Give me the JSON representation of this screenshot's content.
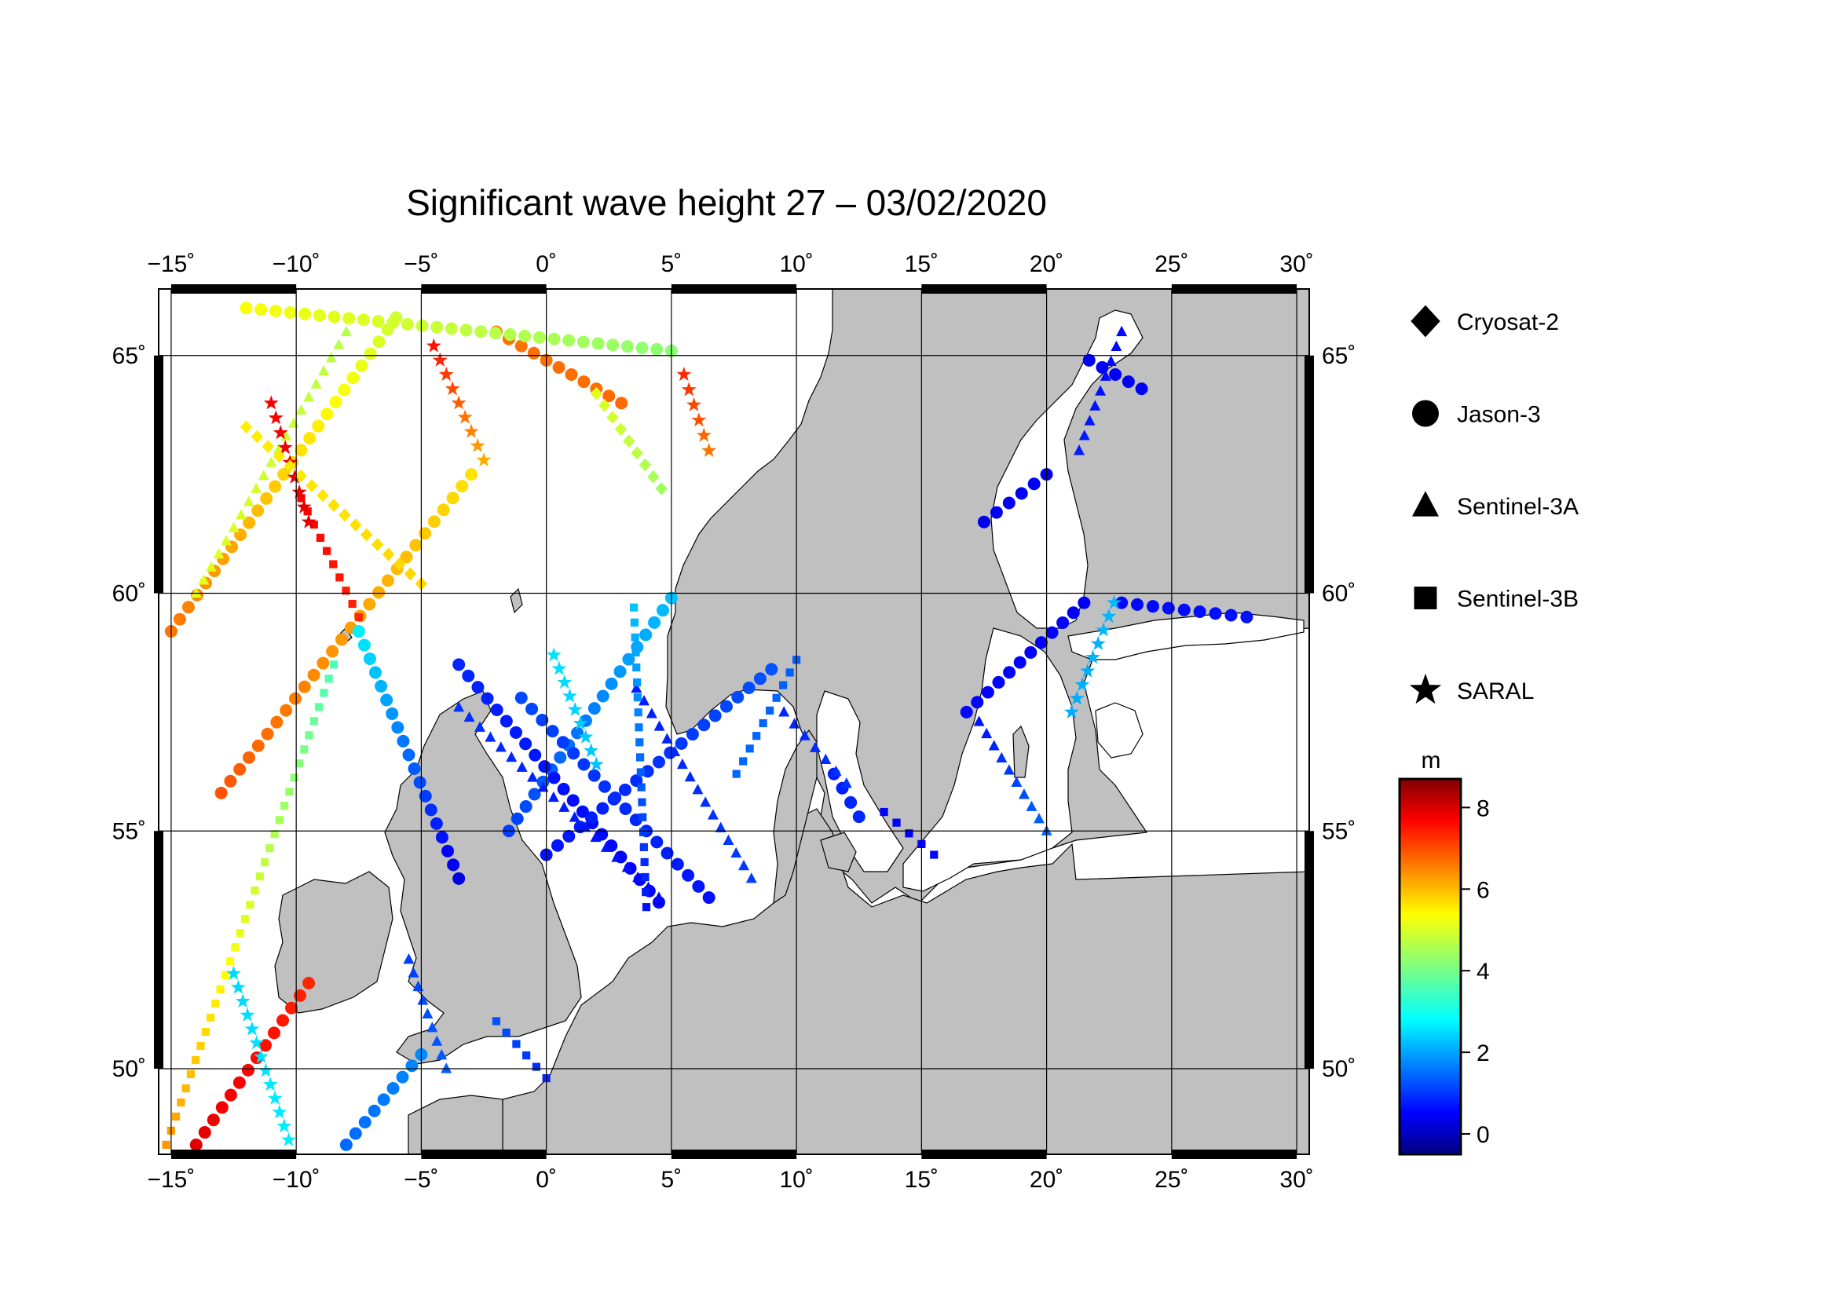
{
  "title": "Significant wave height 27 – 03/02/2020",
  "map": {
    "lon_range": [
      -15.5,
      30.5
    ],
    "lat_range": [
      48.2,
      66.4
    ],
    "lon_ticks": [
      "−15˚",
      "−10˚",
      "−5˚",
      "0˚",
      "5˚",
      "10˚",
      "15˚",
      "20˚",
      "25˚",
      "30˚"
    ],
    "lat_ticks": [
      "50˚",
      "55˚",
      "60˚",
      "65˚"
    ],
    "grid": true,
    "land_color": "#c0c0c0",
    "sea_color": "#ffffff"
  },
  "legend": {
    "items": [
      {
        "label": "Cryosat-2",
        "marker": "diamond"
      },
      {
        "label": "Jason-3",
        "marker": "circle"
      },
      {
        "label": "Sentinel-3A",
        "marker": "triangle"
      },
      {
        "label": "Sentinel-3B",
        "marker": "square"
      },
      {
        "label": "SARAL",
        "marker": "star"
      }
    ]
  },
  "colorbar": {
    "unit": "m",
    "min": -0.5,
    "max": 8.7,
    "ticks": [
      "0",
      "2",
      "4",
      "6",
      "8"
    ],
    "colormap": "jet"
  },
  "chart_data": {
    "type": "scatter",
    "title": "Significant wave height 27 – 03/02/2020",
    "xlabel": "",
    "ylabel": "",
    "xlim": [
      -15.5,
      30.5
    ],
    "ylim": [
      48.2,
      66.4
    ],
    "color_variable": "significant wave height (m)",
    "tracks": [
      {
        "series": "Jason-3",
        "from": [
          -14,
          48.4
        ],
        "to": [
          -9.5,
          51.8
        ],
        "swh": [
          7.8,
          7.2
        ]
      },
      {
        "series": "Jason-3",
        "from": [
          -15,
          59.2
        ],
        "to": [
          -6,
          65.8
        ],
        "swh": [
          6.5,
          4.8
        ]
      },
      {
        "series": "Jason-3",
        "from": [
          -13,
          55.8
        ],
        "to": [
          -3,
          62.5
        ],
        "swh": [
          6.8,
          5.5
        ]
      },
      {
        "series": "Jason-3",
        "from": [
          -1.5,
          55
        ],
        "to": [
          5,
          59.9
        ],
        "swh": [
          1.2,
          2.4
        ]
      },
      {
        "series": "Jason-3",
        "from": [
          -3.5,
          58.5
        ],
        "to": [
          4.5,
          53.5
        ],
        "swh": [
          1.0,
          0.6
        ]
      },
      {
        "series": "Jason-3",
        "from": [
          0,
          54.5
        ],
        "to": [
          9,
          58.4
        ],
        "swh": [
          0.8,
          1.4
        ]
      },
      {
        "series": "Jason-3",
        "from": [
          -1,
          57.8
        ],
        "to": [
          6.5,
          53.6
        ],
        "swh": [
          1.3,
          0.8
        ]
      },
      {
        "series": "Jason-3",
        "from": [
          -7.5,
          59.2
        ],
        "to": [
          -3.5,
          54
        ],
        "swh": [
          2.8,
          0.4
        ]
      },
      {
        "series": "Jason-3",
        "from": [
          -8,
          48.4
        ],
        "to": [
          -5,
          50.3
        ],
        "swh": [
          1.6,
          1.9
        ]
      },
      {
        "series": "Jason-3",
        "from": [
          -2,
          65.5
        ],
        "to": [
          3,
          64
        ],
        "swh": [
          6.5,
          6.6
        ]
      },
      {
        "series": "Jason-3",
        "from": [
          -12,
          66
        ],
        "to": [
          5,
          65.1
        ],
        "swh": [
          5.2,
          4.2
        ]
      },
      {
        "series": "Jason-3",
        "from": [
          16.8,
          57.5
        ],
        "to": [
          21.5,
          59.8
        ],
        "swh": [
          0.7,
          0.6
        ]
      },
      {
        "series": "Jason-3",
        "from": [
          17.5,
          61.5
        ],
        "to": [
          20,
          62.5
        ],
        "swh": [
          0.5,
          0.6
        ]
      },
      {
        "series": "Jason-3",
        "from": [
          21.7,
          64.9
        ],
        "to": [
          23.8,
          64.3
        ],
        "swh": [
          0.6,
          0.6
        ]
      },
      {
        "series": "Jason-3",
        "from": [
          23,
          59.8
        ],
        "to": [
          28,
          59.5
        ],
        "swh": [
          0.7,
          0.8
        ]
      },
      {
        "series": "Jason-3",
        "from": [
          11.5,
          56.2
        ],
        "to": [
          12.5,
          55.3
        ],
        "swh": [
          0.9,
          1.0
        ]
      },
      {
        "series": "Sentinel-3A",
        "from": [
          -14,
          60
        ],
        "to": [
          -8,
          65.5
        ],
        "swh": [
          5.0,
          4.6
        ]
      },
      {
        "series": "Sentinel-3A",
        "from": [
          -3.5,
          57.6
        ],
        "to": [
          4.5,
          53.6
        ],
        "swh": [
          1.1,
          0.7
        ]
      },
      {
        "series": "Sentinel-3A",
        "from": [
          3.6,
          58
        ],
        "to": [
          8.2,
          54
        ],
        "swh": [
          0.9,
          1.2
        ]
      },
      {
        "series": "Sentinel-3A",
        "from": [
          17.3,
          57.3
        ],
        "to": [
          20,
          55
        ],
        "swh": [
          0.8,
          1.6
        ]
      },
      {
        "series": "Sentinel-3A",
        "from": [
          9.5,
          57.5
        ],
        "to": [
          12,
          56
        ],
        "swh": [
          1.0,
          1.1
        ]
      },
      {
        "series": "Sentinel-3A",
        "from": [
          -5.5,
          52.3
        ],
        "to": [
          -4,
          50
        ],
        "swh": [
          1.2,
          1.5
        ]
      },
      {
        "series": "Sentinel-3A",
        "from": [
          23,
          65.5
        ],
        "to": [
          21.3,
          63
        ],
        "swh": [
          0.7,
          0.9
        ]
      },
      {
        "series": "Sentinel-3B",
        "from": [
          -15.2,
          48.4
        ],
        "to": [
          -8.5,
          58.5
        ],
        "swh": [
          6.2,
          3.6
        ]
      },
      {
        "series": "Sentinel-3B",
        "from": [
          -9.8,
          62
        ],
        "to": [
          -7.5,
          59.5
        ],
        "swh": [
          7.6,
          7.2
        ]
      },
      {
        "series": "Sentinel-3B",
        "from": [
          3.5,
          59.7
        ],
        "to": [
          4,
          53.4
        ],
        "swh": [
          2.4,
          0.8
        ]
      },
      {
        "series": "Sentinel-3B",
        "from": [
          7.6,
          56.2
        ],
        "to": [
          10,
          58.6
        ],
        "swh": [
          1.6,
          1.5
        ]
      },
      {
        "series": "Sentinel-3B",
        "from": [
          13.5,
          55.4
        ],
        "to": [
          15.5,
          54.5
        ],
        "swh": [
          0.6,
          0.7
        ]
      },
      {
        "series": "Sentinel-3B",
        "from": [
          -2,
          51
        ],
        "to": [
          0,
          49.8
        ],
        "swh": [
          1.4,
          1.0
        ]
      },
      {
        "series": "SARAL",
        "from": [
          -11,
          64
        ],
        "to": [
          -9.5,
          61.5
        ],
        "swh": [
          7.6,
          7.8
        ]
      },
      {
        "series": "SARAL",
        "from": [
          -4.5,
          65.2
        ],
        "to": [
          -2.5,
          62.8
        ],
        "swh": [
          7.4,
          6.0
        ]
      },
      {
        "series": "SARAL",
        "from": [
          5.5,
          64.6
        ],
        "to": [
          6.5,
          63
        ],
        "swh": [
          7.2,
          6.5
        ]
      },
      {
        "series": "SARAL",
        "from": [
          -12.5,
          52
        ],
        "to": [
          -10.3,
          48.5
        ],
        "swh": [
          2.6,
          2.8
        ]
      },
      {
        "series": "SARAL",
        "from": [
          21,
          57.5
        ],
        "to": [
          22.7,
          59.8
        ],
        "swh": [
          2.2,
          2.3
        ]
      },
      {
        "series": "SARAL",
        "from": [
          0.3,
          58.7
        ],
        "to": [
          2,
          56.4
        ],
        "swh": [
          2.7,
          2.4
        ]
      },
      {
        "series": "Cryosat-2",
        "from": [
          -12,
          63.5
        ],
        "to": [
          -5,
          60.2
        ],
        "swh": [
          5.4,
          5.6
        ]
      },
      {
        "series": "Cryosat-2",
        "from": [
          2,
          64.2
        ],
        "to": [
          4.6,
          62.2
        ],
        "swh": [
          5.0,
          4.4
        ]
      }
    ]
  }
}
